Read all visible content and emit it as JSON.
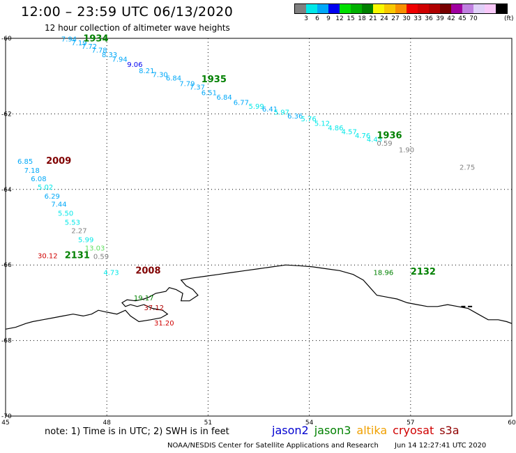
{
  "header": {
    "title": "12:00 – 23:59 UTC 06/13/2020",
    "subtitle": "12 hour collection of altimeter wave heights"
  },
  "legend": {
    "unit": "(ft)",
    "colors": [
      "#808080",
      "#00e8e8",
      "#00a8f8",
      "#0000f0",
      "#00e000",
      "#00b000",
      "#008000",
      "#f8f800",
      "#f8c800",
      "#f89000",
      "#f00000",
      "#d00000",
      "#b00000",
      "#780000",
      "#a000a0",
      "#c080e0",
      "#e0d0f8",
      "#f8c8f8",
      "#000000"
    ],
    "ticks": [
      "3",
      "6",
      "9",
      "12",
      "15",
      "18",
      "21",
      "24",
      "27",
      "30",
      "33",
      "36",
      "39",
      "42",
      "45",
      "70"
    ]
  },
  "axes": {
    "lon_range": [
      45,
      60
    ],
    "lat_range": [
      -60,
      -70
    ],
    "lon_ticks": [
      "45",
      "48",
      "51",
      "54",
      "57",
      "60"
    ],
    "lat_ticks": [
      "-60",
      "-62",
      "-64",
      "-66",
      "-68",
      "-70"
    ]
  },
  "tracks": [
    {
      "label": "1934",
      "color": "#008000",
      "lon": 47.3,
      "lat": -60.08
    },
    {
      "label": "1935",
      "color": "#008000",
      "lon": 50.8,
      "lat": -61.16
    },
    {
      "label": "1936",
      "color": "#008000",
      "lon": 56.0,
      "lat": -62.65
    },
    {
      "label": "2009",
      "color": "#800000",
      "lon": 46.2,
      "lat": -63.32
    },
    {
      "label": "2131",
      "color": "#008000",
      "lon": 46.75,
      "lat": -65.82
    },
    {
      "label": "2008",
      "color": "#800000",
      "lon": 48.85,
      "lat": -66.23
    },
    {
      "label": "2132",
      "color": "#008000",
      "lon": 57.0,
      "lat": -66.25
    }
  ],
  "points": [
    {
      "v": "7.94",
      "c": "#00a8f8",
      "lon": 46.65,
      "lat": -60.08
    },
    {
      "v": "7.19",
      "c": "#00a8f8",
      "lon": 46.95,
      "lat": -60.18
    },
    {
      "v": "7.72",
      "c": "#00a8f8",
      "lon": 47.25,
      "lat": -60.28
    },
    {
      "v": "7.78",
      "c": "#00a8f8",
      "lon": 47.55,
      "lat": -60.38
    },
    {
      "v": "8.33",
      "c": "#00a8f8",
      "lon": 47.85,
      "lat": -60.5
    },
    {
      "v": "7.94",
      "c": "#00a8f8",
      "lon": 48.15,
      "lat": -60.62
    },
    {
      "v": "9.06",
      "c": "#0000f0",
      "lon": 48.6,
      "lat": -60.76
    },
    {
      "v": "8.21",
      "c": "#00a8f8",
      "lon": 48.95,
      "lat": -60.92
    },
    {
      "v": "7.30",
      "c": "#00a8f8",
      "lon": 49.35,
      "lat": -61.02
    },
    {
      "v": "6.84",
      "c": "#00a8f8",
      "lon": 49.75,
      "lat": -61.12
    },
    {
      "v": "7.79",
      "c": "#00a8f8",
      "lon": 50.15,
      "lat": -61.26
    },
    {
      "v": "7.37",
      "c": "#00a8f8",
      "lon": 50.45,
      "lat": -61.36
    },
    {
      "v": "6.51",
      "c": "#00a8f8",
      "lon": 50.8,
      "lat": -61.5
    },
    {
      "v": "6.84",
      "c": "#00a8f8",
      "lon": 51.25,
      "lat": -61.62
    },
    {
      "v": "6.77",
      "c": "#00a8f8",
      "lon": 51.75,
      "lat": -61.76
    },
    {
      "v": "5.99",
      "c": "#00e8e8",
      "lon": 52.2,
      "lat": -61.86
    },
    {
      "v": "6.41",
      "c": "#00a8f8",
      "lon": 52.6,
      "lat": -61.94
    },
    {
      "v": "5.97",
      "c": "#00e8e8",
      "lon": 52.95,
      "lat": -62.02
    },
    {
      "v": "6.36",
      "c": "#00a8f8",
      "lon": 53.35,
      "lat": -62.12
    },
    {
      "v": "5.76",
      "c": "#00e8e8",
      "lon": 53.75,
      "lat": -62.2
    },
    {
      "v": "5.12",
      "c": "#00e8e8",
      "lon": 54.15,
      "lat": -62.32
    },
    {
      "v": "4.86",
      "c": "#00e8e8",
      "lon": 54.55,
      "lat": -62.44
    },
    {
      "v": "4.57",
      "c": "#00e8e8",
      "lon": 54.95,
      "lat": -62.54
    },
    {
      "v": "4.76",
      "c": "#00e8e8",
      "lon": 55.35,
      "lat": -62.64
    },
    {
      "v": "4.43",
      "c": "#00e8e8",
      "lon": 55.7,
      "lat": -62.74
    },
    {
      "v": "0.59",
      "c": "#808080",
      "lon": 56.0,
      "lat": -62.84
    },
    {
      "v": "1.90",
      "c": "#808080",
      "lon": 56.65,
      "lat": -63.02
    },
    {
      "v": "2.75",
      "c": "#808080",
      "lon": 58.45,
      "lat": -63.48
    },
    {
      "v": "6.85",
      "c": "#00a8f8",
      "lon": 45.35,
      "lat": -63.32
    },
    {
      "v": "7.18",
      "c": "#00a8f8",
      "lon": 45.55,
      "lat": -63.56
    },
    {
      "v": "6.08",
      "c": "#00a8f8",
      "lon": 45.75,
      "lat": -63.78
    },
    {
      "v": "5.02",
      "c": "#00e8e8",
      "lon": 45.95,
      "lat": -64.0
    },
    {
      "v": "6.29",
      "c": "#00a8f8",
      "lon": 46.15,
      "lat": -64.24
    },
    {
      "v": "7.44",
      "c": "#00a8f8",
      "lon": 46.35,
      "lat": -64.46
    },
    {
      "v": "5.50",
      "c": "#00e8e8",
      "lon": 46.55,
      "lat": -64.7
    },
    {
      "v": "5.53",
      "c": "#00e8e8",
      "lon": 46.75,
      "lat": -64.94
    },
    {
      "v": "2.27",
      "c": "#808080",
      "lon": 46.95,
      "lat": -65.16
    },
    {
      "v": "5.99",
      "c": "#00e8e8",
      "lon": 47.15,
      "lat": -65.4
    },
    {
      "v": "13.03",
      "c": "#60e060",
      "lon": 47.35,
      "lat": -65.62
    },
    {
      "v": "30.12",
      "c": "#d00000",
      "lon": 45.95,
      "lat": -65.82
    },
    {
      "v": "0.59",
      "c": "#808080",
      "lon": 47.6,
      "lat": -65.84
    },
    {
      "v": "4.73",
      "c": "#00e8e8",
      "lon": 47.9,
      "lat": -66.26
    },
    {
      "v": "19.17",
      "c": "#008000",
      "lon": 48.8,
      "lat": -66.94
    },
    {
      "v": "37.12",
      "c": "#b00000",
      "lon": 49.1,
      "lat": -67.2
    },
    {
      "v": "31.20",
      "c": "#d00000",
      "lon": 49.4,
      "lat": -67.6
    },
    {
      "v": "18.96",
      "c": "#008000",
      "lon": 55.9,
      "lat": -66.26
    }
  ],
  "coast": [
    [
      45.0,
      -67.7
    ],
    [
      45.3,
      -67.65
    ],
    [
      45.6,
      -67.55
    ],
    [
      45.8,
      -67.5
    ],
    [
      46.1,
      -67.45
    ],
    [
      46.4,
      -67.4
    ],
    [
      46.7,
      -67.35
    ],
    [
      47.0,
      -67.3
    ],
    [
      47.3,
      -67.35
    ],
    [
      47.55,
      -67.3
    ],
    [
      47.75,
      -67.2
    ],
    [
      48.0,
      -67.25
    ],
    [
      48.3,
      -67.3
    ],
    [
      48.55,
      -67.2
    ],
    [
      48.7,
      -67.35
    ],
    [
      48.95,
      -67.5
    ],
    [
      49.3,
      -67.45
    ],
    [
      49.6,
      -67.4
    ],
    [
      49.8,
      -67.3
    ],
    [
      49.65,
      -67.2
    ],
    [
      49.35,
      -67.15
    ],
    [
      49.1,
      -67.05
    ],
    [
      48.9,
      -67.1
    ],
    [
      48.7,
      -67.05
    ],
    [
      48.55,
      -67.1
    ],
    [
      48.45,
      -67.0
    ],
    [
      48.6,
      -66.92
    ],
    [
      48.85,
      -66.95
    ],
    [
      49.1,
      -66.9
    ],
    [
      49.25,
      -66.85
    ],
    [
      49.45,
      -66.75
    ],
    [
      49.75,
      -66.7
    ],
    [
      49.85,
      -66.6
    ],
    [
      50.05,
      -66.65
    ],
    [
      50.25,
      -66.75
    ],
    [
      50.2,
      -66.95
    ],
    [
      50.45,
      -66.95
    ],
    [
      50.7,
      -66.8
    ],
    [
      50.55,
      -66.65
    ],
    [
      50.35,
      -66.55
    ],
    [
      50.2,
      -66.4
    ],
    [
      50.5,
      -66.35
    ],
    [
      50.9,
      -66.3
    ],
    [
      51.3,
      -66.25
    ],
    [
      51.7,
      -66.2
    ],
    [
      52.1,
      -66.15
    ],
    [
      52.5,
      -66.1
    ],
    [
      52.9,
      -66.05
    ],
    [
      53.3,
      -66.0
    ],
    [
      53.7,
      -66.02
    ],
    [
      54.1,
      -66.05
    ],
    [
      54.5,
      -66.1
    ],
    [
      54.9,
      -66.15
    ],
    [
      55.3,
      -66.25
    ],
    [
      55.6,
      -66.4
    ],
    [
      55.8,
      -66.6
    ],
    [
      56.0,
      -66.8
    ],
    [
      56.3,
      -66.85
    ],
    [
      56.6,
      -66.9
    ],
    [
      56.9,
      -67.0
    ],
    [
      57.2,
      -67.05
    ],
    [
      57.5,
      -67.1
    ],
    [
      57.8,
      -67.1
    ],
    [
      58.1,
      -67.05
    ],
    [
      58.4,
      -67.1
    ],
    [
      58.7,
      -67.15
    ],
    [
      59.0,
      -67.3
    ],
    [
      59.3,
      -67.45
    ],
    [
      59.6,
      -67.45
    ],
    [
      59.85,
      -67.5
    ],
    [
      60.0,
      -67.55
    ]
  ],
  "ice_marks": [
    [
      58.5,
      -67.1
    ],
    [
      58.7,
      -67.1
    ]
  ],
  "note": "note:  1) Time is in UTC;  2) SWH is in feet",
  "satellites": [
    {
      "name": "jason2",
      "color": "#0000d0"
    },
    {
      "name": "jason3",
      "color": "#008000"
    },
    {
      "name": "altika",
      "color": "#f0a000"
    },
    {
      "name": "cryosat",
      "color": "#d00000"
    },
    {
      "name": "s3a",
      "color": "#900000"
    }
  ],
  "footer": {
    "org": "NOAA/NESDIS Center for Satellite Applications and Research",
    "timestamp": "Jun 14 12:27:41 UTC 2020"
  }
}
